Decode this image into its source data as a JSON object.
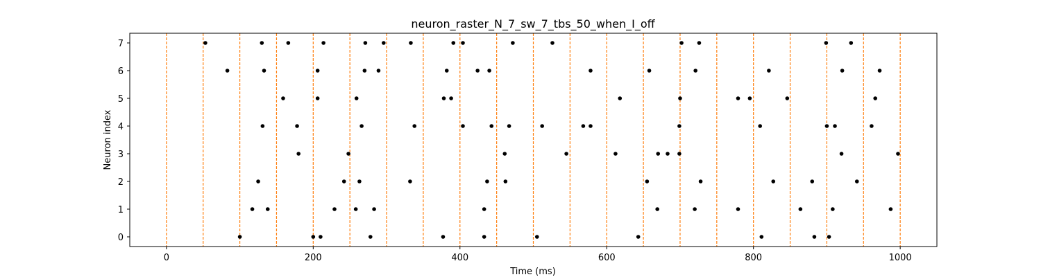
{
  "chart_data": {
    "type": "scatter",
    "title": "neuron_raster_N_7_sw_7_tbs_50_when_I_off",
    "xlabel": "Time (ms)",
    "ylabel": "Neuron index",
    "xlim": [
      -50,
      1050
    ],
    "ylim": [
      -0.35,
      7.35
    ],
    "x_ticks": [
      0,
      200,
      400,
      600,
      800,
      1000
    ],
    "y_ticks": [
      0,
      1,
      2,
      3,
      4,
      5,
      6,
      7
    ],
    "grid": false,
    "marker_color": "#000000",
    "vline_color": "#ff7f0e",
    "vlines": [
      0,
      50,
      100,
      150,
      200,
      250,
      300,
      350,
      400,
      450,
      500,
      550,
      600,
      650,
      700,
      750,
      800,
      850,
      900,
      950,
      1000
    ],
    "spikes": [
      {
        "neuron": 7,
        "times": [
          53,
          130,
          166,
          214,
          271,
          296,
          333,
          391,
          404,
          472,
          526,
          702,
          726,
          899,
          933
        ]
      },
      {
        "neuron": 6,
        "times": [
          83,
          133,
          206,
          270,
          289,
          382,
          424,
          440,
          578,
          658,
          721,
          821,
          921,
          972
        ]
      },
      {
        "neuron": 5,
        "times": [
          159,
          206,
          259,
          378,
          388,
          618,
          700,
          779,
          795,
          846,
          966
        ]
      },
      {
        "neuron": 4,
        "times": [
          131,
          178,
          266,
          338,
          404,
          443,
          467,
          512,
          568,
          578,
          699,
          809,
          900,
          911,
          961
        ]
      },
      {
        "neuron": 3,
        "times": [
          180,
          248,
          461,
          545,
          612,
          670,
          683,
          699,
          920,
          997
        ]
      },
      {
        "neuron": 2,
        "times": [
          125,
          242,
          263,
          332,
          437,
          462,
          655,
          728,
          827,
          880,
          941
        ]
      },
      {
        "neuron": 1,
        "times": [
          117,
          138,
          229,
          258,
          283,
          433,
          669,
          720,
          779,
          864,
          908,
          987
        ]
      },
      {
        "neuron": 0,
        "times": [
          100,
          200,
          210,
          278,
          377,
          433,
          505,
          643,
          811,
          883,
          903
        ]
      }
    ]
  }
}
